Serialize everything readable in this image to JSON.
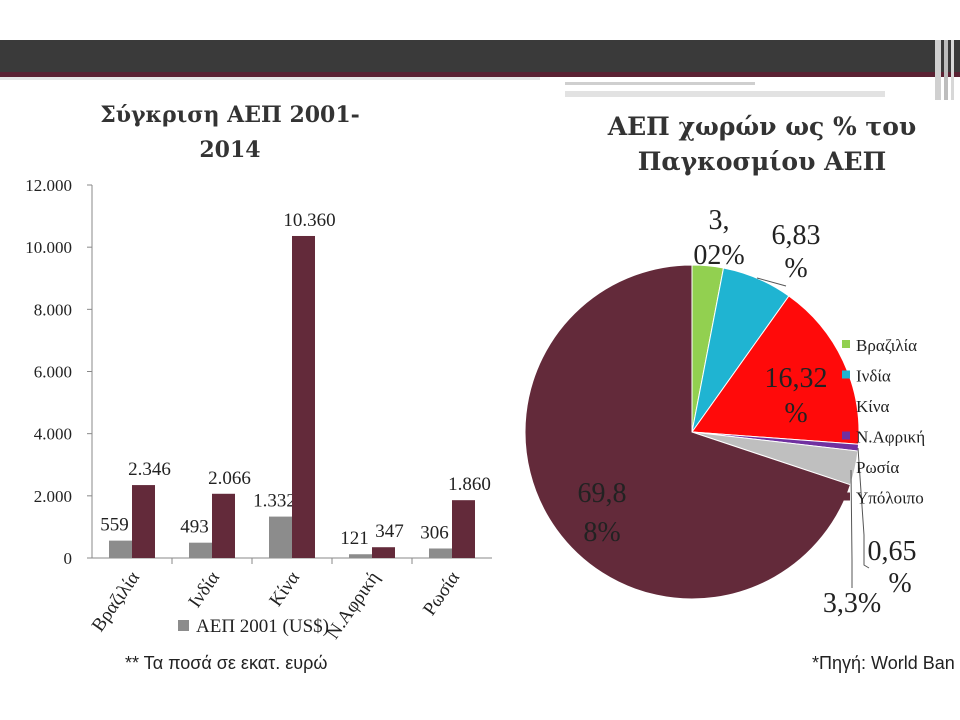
{
  "footnotes": {
    "left": "** Τα ποσά σε εκατ. ευρώ",
    "right": "*Πηγή: World Ban"
  },
  "colors": {
    "header_dark": "#3a3a3a",
    "header_accent": "#5a2233",
    "series_2001": "#8c8c8c",
    "series_2014": "#632a3a"
  },
  "chart_data": [
    {
      "type": "bar",
      "title": "Σύγκριση ΑΕΠ 2001-2014",
      "title_lines": [
        "Σύγκριση ΑΕΠ 2001-",
        "2014"
      ],
      "categories": [
        "Βραζιλία",
        "Ινδία",
        "Κίνα",
        "Ν.Αφρική",
        "Ρωσία"
      ],
      "series": [
        {
          "name": "ΑΕΠ 2001 (US$)",
          "values": [
            559,
            493,
            1332,
            121,
            306
          ],
          "labels": [
            "559",
            "493",
            "1.332",
            "121",
            "306"
          ],
          "color": "#8c8c8c"
        },
        {
          "values": [
            2346,
            2066,
            10360,
            347,
            1860
          ],
          "labels": [
            "2.346",
            "2.066",
            "10.360",
            "347",
            "1.860"
          ],
          "color": "#632a3a"
        }
      ],
      "ylim": [
        0,
        12000
      ],
      "yticks": [
        0,
        2000,
        4000,
        6000,
        8000,
        10000,
        12000
      ],
      "ytick_labels": [
        "0",
        "2.000",
        "4.000",
        "6.000",
        "8.000",
        "10.000",
        "12.000"
      ],
      "xlabel": "",
      "ylabel": "",
      "grid": false,
      "legend_position": "bottom"
    },
    {
      "type": "pie",
      "title": "ΑΕΠ χωρών ως % του Παγκοσμίου ΑΕΠ",
      "title_lines": [
        "ΑΕΠ χωρών ως % του",
        "Παγκοσμίου ΑΕΠ"
      ],
      "slices": [
        {
          "label": "Βραζιλία",
          "value": 3.02,
          "color": "#92d050",
          "text": [
            "3,",
            "02%"
          ]
        },
        {
          "label": "Ινδία",
          "value": 6.83,
          "color": "#1fb4d2",
          "text": [
            "6,83",
            "%"
          ]
        },
        {
          "label": "Κίνα",
          "value": 16.32,
          "color": "#ff0a0a",
          "text": [
            "16,32",
            "%"
          ]
        },
        {
          "label": "Ν.Αφρική",
          "value": 0.65,
          "color": "#7030a0",
          "text": [
            "0,65",
            "%"
          ]
        },
        {
          "label": "Ρωσία",
          "value": 3.3,
          "color": "#bfbfbf",
          "text": [
            "3,3%"
          ]
        },
        {
          "label": "Υπόλοιπο",
          "value": 69.88,
          "color": "#632a3a",
          "text": [
            "69,8",
            "8%"
          ]
        }
      ],
      "legend_position": "right"
    }
  ]
}
